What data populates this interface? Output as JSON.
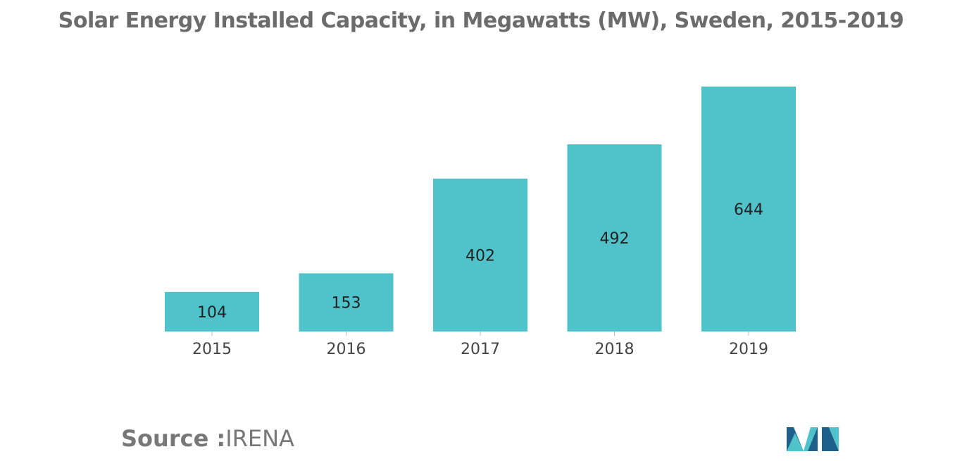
{
  "title": "Solar Energy Installed Capacity, in Megawatts (MW), Sweden, 2015-2019",
  "source": {
    "prefix": "Source :",
    "name": "IRENA"
  },
  "logo": {
    "icon": "mordor-intelligence-logo-icon"
  },
  "colors": {
    "bar": "#4fc3c9",
    "title": "#6b6b6b",
    "logo_dark": "#1f5f8b",
    "logo_light": "#4fc3c9"
  },
  "chart_data": {
    "type": "bar",
    "title": "Solar Energy Installed Capacity, in Megawatts (MW), Sweden, 2015-2019",
    "categories": [
      "2015",
      "2016",
      "2017",
      "2018",
      "2019"
    ],
    "values": [
      104,
      153,
      402,
      492,
      644
    ],
    "xlabel": "",
    "ylabel": "",
    "ylim": [
      0,
      650
    ],
    "grid": false,
    "legend": "none",
    "data_labels": true
  }
}
